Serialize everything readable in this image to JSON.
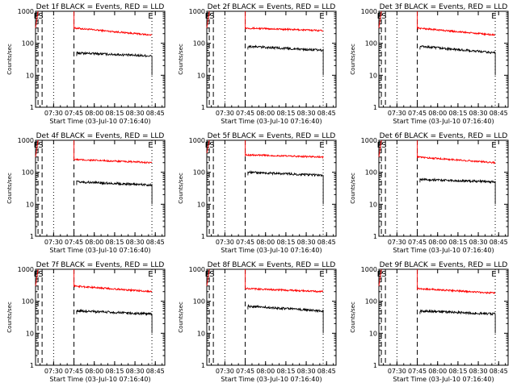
{
  "chart_data": [
    {
      "type": "line",
      "title": "Det 1f BLACK = Events, RED = LLD",
      "xlabel": "Start Time (03-Jul-10 07:16:40)",
      "ylabel": "Counts/sec",
      "yscale": "log",
      "ylim": [
        1,
        1000
      ],
      "x_ticks": [
        "07:30",
        "07:45",
        "08:00",
        "08:15",
        "08:30",
        "08:45"
      ],
      "y_ticks": [
        "1",
        "10",
        "100",
        "1000"
      ],
      "markers": [
        "E",
        "S",
        "E"
      ],
      "series": [
        {
          "name": "LLD",
          "color": "#ff0000",
          "segments": [
            {
              "x": [
                "07:16:40",
                "07:18:30"
              ],
              "y": [
                300,
                1000
              ]
            },
            {
              "x": [
                "07:45:00",
                "08:42:30"
              ],
              "y": [
                300,
                180
              ]
            }
          ]
        },
        {
          "name": "Events",
          "color": "#000000",
          "segments": [
            {
              "x": [
                "07:47:00",
                "08:42:30"
              ],
              "y": [
                50,
                40
              ]
            }
          ]
        }
      ]
    },
    {
      "type": "line",
      "title": "Det 2f BLACK = Events, RED = LLD",
      "xlabel": "Start Time (03-Jul-10 07:16:40)",
      "ylabel": "Counts/sec",
      "yscale": "log",
      "ylim": [
        1,
        1000
      ],
      "x_ticks": [
        "07:30",
        "07:45",
        "08:00",
        "08:15",
        "08:30",
        "08:45"
      ],
      "y_ticks": [
        "1",
        "10",
        "100",
        "1000"
      ],
      "markers": [
        "E",
        "S",
        "E"
      ],
      "series": [
        {
          "name": "LLD",
          "color": "#ff0000",
          "segments": [
            {
              "x": [
                "07:16:40",
                "07:18:30"
              ],
              "y": [
                300,
                1000
              ]
            },
            {
              "x": [
                "07:45:00",
                "08:42:30"
              ],
              "y": [
                300,
                250
              ]
            }
          ]
        },
        {
          "name": "Events",
          "color": "#000000",
          "segments": [
            {
              "x": [
                "07:47:00",
                "08:42:30"
              ],
              "y": [
                80,
                60
              ]
            }
          ]
        }
      ]
    },
    {
      "type": "line",
      "title": "Det 3f BLACK = Events, RED = LLD",
      "xlabel": "Start Time (03-Jul-10 07:16:40)",
      "ylabel": "Counts/sec",
      "yscale": "log",
      "ylim": [
        1,
        1000
      ],
      "x_ticks": [
        "07:30",
        "07:45",
        "08:00",
        "08:15",
        "08:30",
        "08:45"
      ],
      "y_ticks": [
        "1",
        "10",
        "100",
        "1000"
      ],
      "markers": [
        "E",
        "S",
        "E"
      ],
      "series": [
        {
          "name": "LLD",
          "color": "#ff0000",
          "segments": [
            {
              "x": [
                "07:16:40",
                "07:18:30"
              ],
              "y": [
                300,
                1000
              ]
            },
            {
              "x": [
                "07:45:00",
                "08:42:30"
              ],
              "y": [
                300,
                180
              ]
            }
          ]
        },
        {
          "name": "Events",
          "color": "#000000",
          "segments": [
            {
              "x": [
                "07:47:00",
                "08:42:30"
              ],
              "y": [
                80,
                50
              ]
            }
          ]
        }
      ]
    },
    {
      "type": "line",
      "title": "Det 4f BLACK = Events, RED = LLD",
      "xlabel": "Start Time (03-Jul-10 07:16:40)",
      "ylabel": "Counts/sec",
      "yscale": "log",
      "ylim": [
        1,
        1000
      ],
      "x_ticks": [
        "07:30",
        "07:45",
        "08:00",
        "08:15",
        "08:30",
        "08:45"
      ],
      "y_ticks": [
        "1",
        "10",
        "100",
        "1000"
      ],
      "markers": [
        "E",
        "S",
        "E"
      ],
      "series": [
        {
          "name": "LLD",
          "color": "#ff0000",
          "segments": [
            {
              "x": [
                "07:16:40",
                "07:18:30"
              ],
              "y": [
                300,
                1000
              ]
            },
            {
              "x": [
                "07:45:00",
                "08:42:30"
              ],
              "y": [
                250,
                200
              ]
            }
          ]
        },
        {
          "name": "Events",
          "color": "#000000",
          "segments": [
            {
              "x": [
                "07:47:00",
                "08:42:30"
              ],
              "y": [
                50,
                40
              ]
            }
          ]
        }
      ]
    },
    {
      "type": "line",
      "title": "Det 5f BLACK = Events, RED = LLD",
      "xlabel": "Start Time (03-Jul-10 07:16:40)",
      "ylabel": "Counts/sec",
      "yscale": "log",
      "ylim": [
        1,
        1000
      ],
      "x_ticks": [
        "07:30",
        "07:45",
        "08:00",
        "08:15",
        "08:30",
        "08:45"
      ],
      "y_ticks": [
        "1",
        "10",
        "100",
        "1000"
      ],
      "markers": [
        "E",
        "S",
        "E"
      ],
      "series": [
        {
          "name": "LLD",
          "color": "#ff0000",
          "segments": [
            {
              "x": [
                "07:16:40",
                "07:18:30"
              ],
              "y": [
                400,
                1000
              ]
            },
            {
              "x": [
                "07:45:00",
                "08:42:30"
              ],
              "y": [
                350,
                300
              ]
            }
          ]
        },
        {
          "name": "Events",
          "color": "#000000",
          "segments": [
            {
              "x": [
                "07:47:00",
                "08:42:30"
              ],
              "y": [
                100,
                80
              ]
            }
          ]
        }
      ]
    },
    {
      "type": "line",
      "title": "Det 6f BLACK = Events, RED = LLD",
      "xlabel": "Start Time (03-Jul-10 07:16:40)",
      "ylabel": "Counts/sec",
      "yscale": "log",
      "ylim": [
        1,
        1000
      ],
      "x_ticks": [
        "07:30",
        "07:45",
        "08:00",
        "08:15",
        "08:30",
        "08:45"
      ],
      "y_ticks": [
        "1",
        "10",
        "100",
        "1000"
      ],
      "markers": [
        "E",
        "S",
        "E"
      ],
      "series": [
        {
          "name": "LLD",
          "color": "#ff0000",
          "segments": [
            {
              "x": [
                "07:16:40",
                "07:18:30"
              ],
              "y": [
                300,
                1000
              ]
            },
            {
              "x": [
                "07:45:00",
                "08:42:30"
              ],
              "y": [
                300,
                200
              ]
            }
          ]
        },
        {
          "name": "Events",
          "color": "#000000",
          "segments": [
            {
              "x": [
                "07:47:00",
                "08:42:30"
              ],
              "y": [
                60,
                50
              ]
            }
          ]
        }
      ]
    },
    {
      "type": "line",
      "title": "Det 7f BLACK = Events, RED = LLD",
      "xlabel": "Start Time (03-Jul-10 07:16:40)",
      "ylabel": "Counts/sec",
      "yscale": "log",
      "ylim": [
        1,
        1000
      ],
      "x_ticks": [
        "07:30",
        "07:45",
        "08:00",
        "08:15",
        "08:30",
        "08:45"
      ],
      "y_ticks": [
        "1",
        "10",
        "100",
        "1000"
      ],
      "markers": [
        "E",
        "S",
        "E"
      ],
      "series": [
        {
          "name": "LLD",
          "color": "#ff0000",
          "segments": [
            {
              "x": [
                "07:16:40",
                "07:18:30"
              ],
              "y": [
                300,
                1000
              ]
            },
            {
              "x": [
                "07:45:00",
                "08:42:30"
              ],
              "y": [
                300,
                200
              ]
            }
          ]
        },
        {
          "name": "Events",
          "color": "#000000",
          "segments": [
            {
              "x": [
                "07:47:00",
                "08:42:30"
              ],
              "y": [
                50,
                40
              ]
            }
          ]
        }
      ]
    },
    {
      "type": "line",
      "title": "Det 8f BLACK = Events, RED = LLD",
      "xlabel": "Start Time (03-Jul-10 07:16:40)",
      "ylabel": "Counts/sec",
      "yscale": "log",
      "ylim": [
        1,
        1000
      ],
      "x_ticks": [
        "07:30",
        "07:45",
        "08:00",
        "08:15",
        "08:30",
        "08:45"
      ],
      "y_ticks": [
        "1",
        "10",
        "100",
        "1000"
      ],
      "markers": [
        "E",
        "S",
        "E"
      ],
      "series": [
        {
          "name": "LLD",
          "color": "#ff0000",
          "segments": [
            {
              "x": [
                "07:16:40",
                "07:18:30"
              ],
              "y": [
                300,
                1000
              ]
            },
            {
              "x": [
                "07:45:00",
                "08:42:30"
              ],
              "y": [
                250,
                200
              ]
            }
          ]
        },
        {
          "name": "Events",
          "color": "#000000",
          "segments": [
            {
              "x": [
                "07:47:00",
                "08:42:30"
              ],
              "y": [
                70,
                50
              ]
            }
          ]
        }
      ]
    },
    {
      "type": "line",
      "title": "Det 9f BLACK = Events, RED = LLD",
      "xlabel": "Start Time (03-Jul-10 07:16:40)",
      "ylabel": "Counts/sec",
      "yscale": "log",
      "ylim": [
        1,
        1000
      ],
      "x_ticks": [
        "07:30",
        "07:45",
        "08:00",
        "08:15",
        "08:30",
        "08:45"
      ],
      "y_ticks": [
        "1",
        "10",
        "100",
        "1000"
      ],
      "markers": [
        "E",
        "S",
        "E"
      ],
      "series": [
        {
          "name": "LLD",
          "color": "#ff0000",
          "segments": [
            {
              "x": [
                "07:16:40",
                "07:18:30"
              ],
              "y": [
                300,
                1000
              ]
            },
            {
              "x": [
                "07:45:00",
                "08:42:30"
              ],
              "y": [
                250,
                180
              ]
            }
          ]
        },
        {
          "name": "Events",
          "color": "#000000",
          "segments": [
            {
              "x": [
                "07:47:00",
                "08:42:30"
              ],
              "y": [
                50,
                40
              ]
            }
          ]
        }
      ]
    }
  ]
}
